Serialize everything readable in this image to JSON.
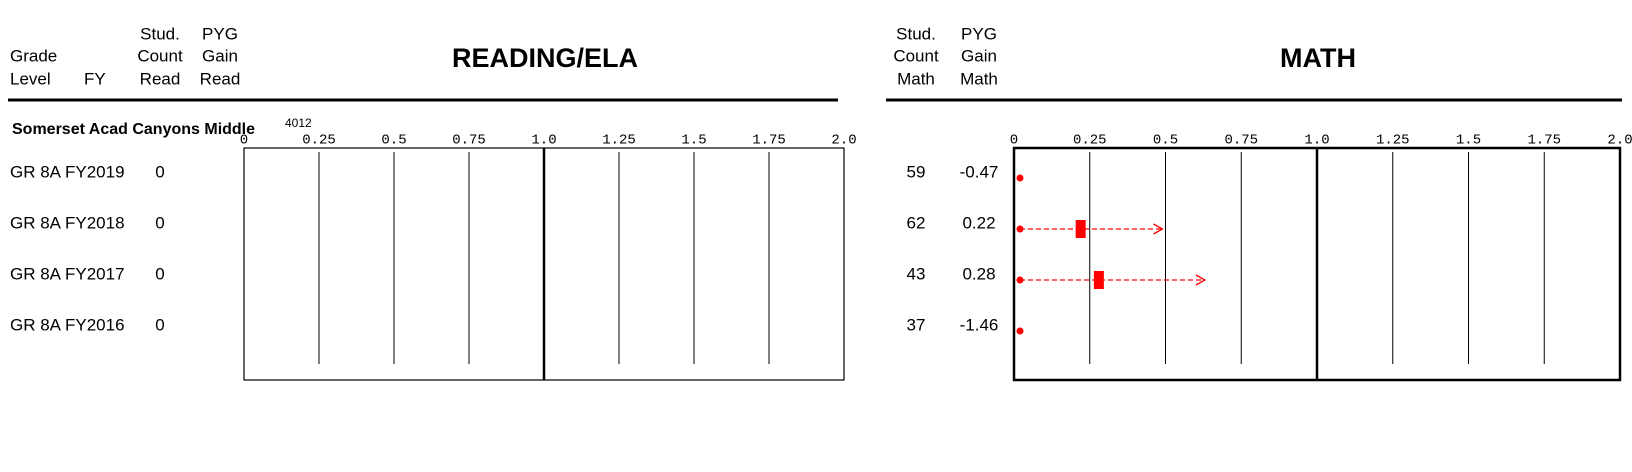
{
  "school": "Somerset Acad Canyons Middle",
  "school_code": "4012",
  "row_labels": {
    "columns": [
      [
        "Grade",
        "Level"
      ],
      [
        "FY"
      ]
    ],
    "rows": [
      [
        "GR 8A",
        "FY2019"
      ],
      [
        "GR 8A",
        "FY2018"
      ],
      [
        "GR 8A",
        "FY2017"
      ],
      [
        "GR 8A",
        "FY2016"
      ]
    ]
  },
  "reading": {
    "title": "READING/ELA",
    "columns": [
      [
        "Stud.",
        "Count",
        "Read"
      ],
      [
        "PYG",
        "Gain",
        "Read"
      ]
    ],
    "counts": [
      0,
      0,
      0,
      0
    ],
    "xlim": [
      0,
      2
    ],
    "xticks": [
      0,
      0.25,
      0.5,
      0.75,
      {
        "value": 1,
        "label": "1.0"
      },
      1.25,
      1.5,
      1.75,
      {
        "value": 2,
        "label": "2.0"
      }
    ],
    "reference_line": 1
  },
  "math": {
    "title": "MATH",
    "columns": [
      [
        "Stud.",
        "Count",
        "Math"
      ],
      [
        "PYG",
        "Gain",
        "Math"
      ]
    ],
    "counts": [
      59,
      62,
      43,
      37
    ],
    "gains": [
      -0.47,
      0.22,
      0.28,
      -1.46
    ],
    "interval_high": [
      null,
      0.49,
      0.63,
      null
    ],
    "color": "#ff0000",
    "xlim": [
      0,
      2
    ],
    "xticks": [
      0,
      0.25,
      0.5,
      0.75,
      {
        "value": 1,
        "label": "1.0"
      },
      1.25,
      1.5,
      1.75,
      {
        "value": 2,
        "label": "2.0"
      }
    ],
    "reference_line": 1
  }
}
